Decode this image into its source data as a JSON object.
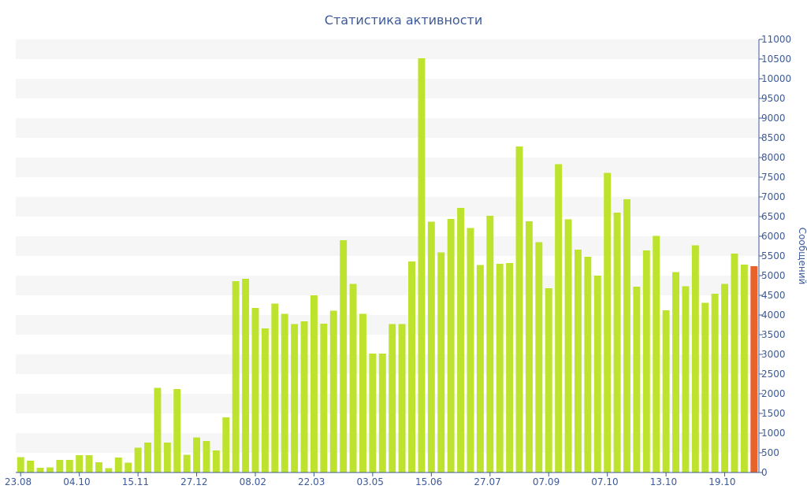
{
  "chart_data": {
    "type": "bar",
    "title": "Статистика активности",
    "xlabel": "",
    "ylabel": "Сообщений",
    "ylim": [
      0,
      11000
    ],
    "y_axis_side": "right",
    "y_ticks": [
      0,
      500,
      1000,
      1500,
      2000,
      2500,
      3000,
      3500,
      4000,
      4500,
      5000,
      5500,
      6000,
      6500,
      7000,
      7500,
      8000,
      8500,
      9000,
      9500,
      10000,
      10500,
      11000
    ],
    "x_tick_labels": [
      {
        "label": "23.08",
        "index": 0
      },
      {
        "label": "04.10",
        "index": 6
      },
      {
        "label": "15.11",
        "index": 12
      },
      {
        "label": "27.12",
        "index": 18
      },
      {
        "label": "08.02",
        "index": 24
      },
      {
        "label": "22.03",
        "index": 30
      },
      {
        "label": "03.05",
        "index": 36
      },
      {
        "label": "15.06",
        "index": 42
      },
      {
        "label": "27.07",
        "index": 48
      },
      {
        "label": "07.09",
        "index": 54
      },
      {
        "label": "07.10",
        "index": 60
      },
      {
        "label": "13.10",
        "index": 66
      },
      {
        "label": "19.10",
        "index": 72
      }
    ],
    "grid": "alternating horizontal bands",
    "colors": {
      "bar": "#bde32f",
      "highlight": "#e8622a",
      "text": "#3c5a99",
      "band": "#f6f6f6"
    },
    "values": [
      390,
      300,
      120,
      130,
      320,
      320,
      440,
      440,
      260,
      110,
      380,
      250,
      630,
      760,
      2150,
      760,
      2120,
      450,
      890,
      800,
      560,
      1400,
      4860,
      4920,
      4180,
      3660,
      4290,
      4030,
      3770,
      3840,
      4500,
      3780,
      4110,
      5900,
      4790,
      4030,
      3020,
      3020,
      3770,
      3770,
      5360,
      10520,
      6370,
      5590,
      6440,
      6720,
      6210,
      5270,
      6520,
      5300,
      5320,
      8280,
      6380,
      5850,
      4680,
      7830,
      6430,
      5660,
      5480,
      5000,
      7610,
      6600,
      6940,
      4720,
      5640,
      6010,
      4120,
      5090,
      4730,
      5770,
      4310,
      4540,
      4790,
      5560,
      5280,
      5240
    ],
    "highlight_index": 75,
    "highlight_color": "#e8622a"
  }
}
